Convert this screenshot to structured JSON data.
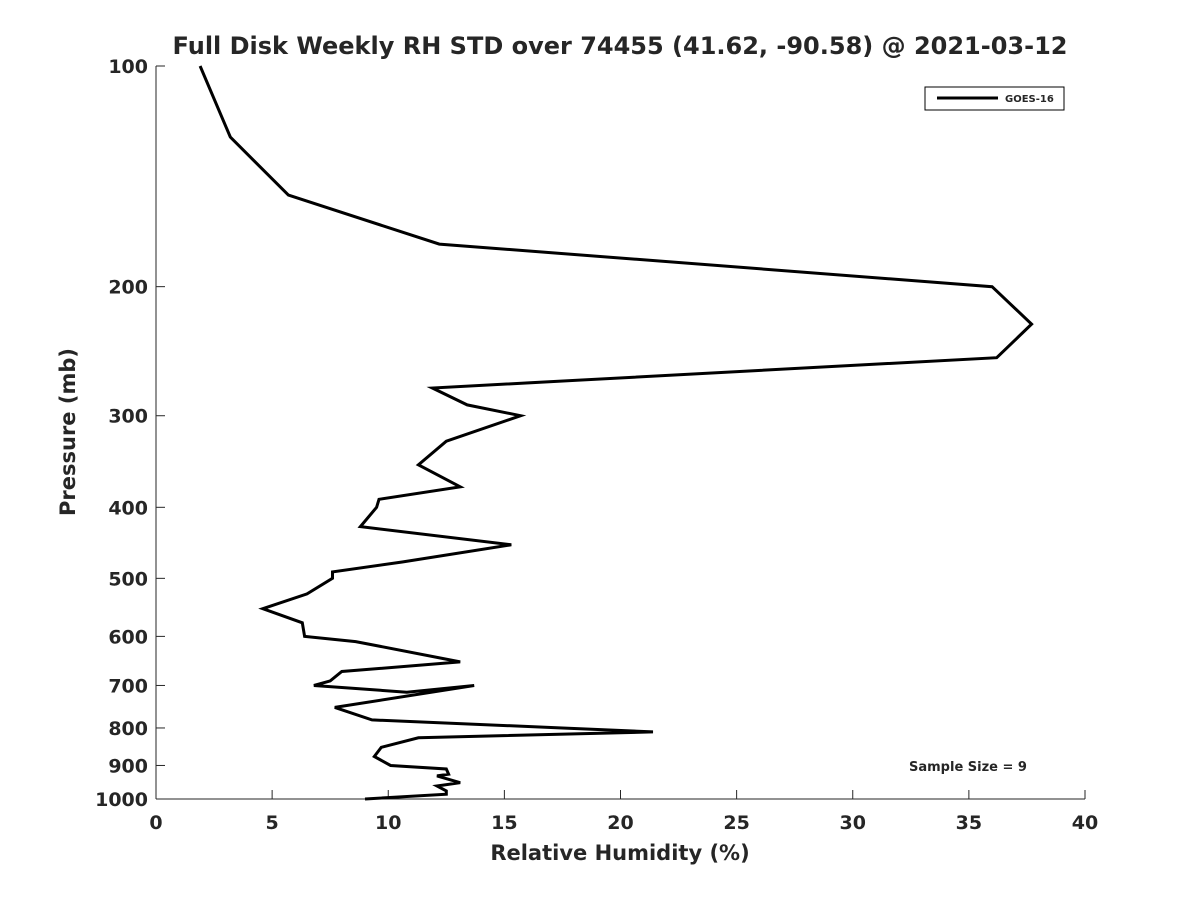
{
  "chart_data": {
    "type": "line",
    "title": "Full Disk Weekly RH STD over 74455 (41.62, -90.58) @ 2021-03-12",
    "xlabel": "Relative Humidity (%)",
    "ylabel": "Pressure (mb)",
    "xlim": [
      0,
      40
    ],
    "ylim": [
      1000,
      100
    ],
    "y_scale": "log",
    "y_inverted": true,
    "grid": false,
    "legend_position": "top-right",
    "x_ticks": [
      0,
      5,
      10,
      15,
      20,
      25,
      30,
      35,
      40
    ],
    "y_ticks": [
      100,
      200,
      300,
      400,
      500,
      600,
      700,
      800,
      900,
      1000
    ],
    "annotation": "Sample Size = 9",
    "series": [
      {
        "name": "GOES-16",
        "color": "#000000",
        "points": [
          [
            1.9,
            100
          ],
          [
            3.2,
            125
          ],
          [
            5.7,
            150
          ],
          [
            12.2,
            175
          ],
          [
            36.0,
            200
          ],
          [
            37.7,
            225
          ],
          [
            36.2,
            250
          ],
          [
            11.9,
            275
          ],
          [
            13.4,
            290
          ],
          [
            15.7,
            300
          ],
          [
            12.5,
            325
          ],
          [
            11.3,
            350
          ],
          [
            13.1,
            375
          ],
          [
            9.6,
            390
          ],
          [
            9.5,
            400
          ],
          [
            8.8,
            425
          ],
          [
            15.3,
            450
          ],
          [
            10.6,
            475
          ],
          [
            7.6,
            490
          ],
          [
            7.6,
            500
          ],
          [
            6.5,
            525
          ],
          [
            4.6,
            550
          ],
          [
            6.3,
            575
          ],
          [
            6.4,
            600
          ],
          [
            8.6,
            610
          ],
          [
            13.1,
            650
          ],
          [
            8.0,
            670
          ],
          [
            7.5,
            690
          ],
          [
            6.8,
            700
          ],
          [
            10.8,
            715
          ],
          [
            13.7,
            700
          ],
          [
            7.7,
            750
          ],
          [
            9.3,
            780
          ],
          [
            17.5,
            800
          ],
          [
            21.4,
            810
          ],
          [
            11.3,
            825
          ],
          [
            9.7,
            850
          ],
          [
            9.4,
            875
          ],
          [
            10.1,
            900
          ],
          [
            12.5,
            910
          ],
          [
            12.6,
            925
          ],
          [
            12.1,
            930
          ],
          [
            13.1,
            950
          ],
          [
            12.1,
            960
          ],
          [
            12.5,
            975
          ],
          [
            12.5,
            985
          ],
          [
            9.0,
            1000
          ]
        ]
      }
    ]
  }
}
